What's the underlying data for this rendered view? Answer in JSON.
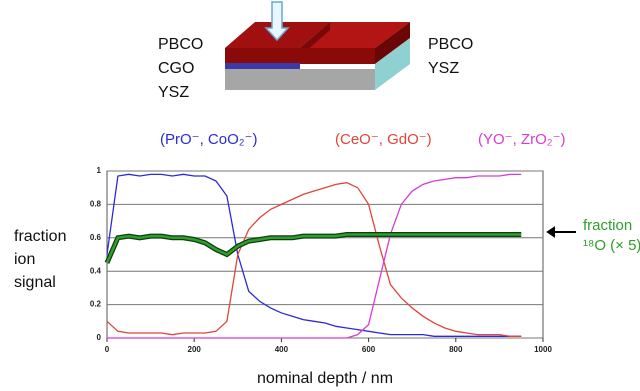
{
  "diagram": {
    "left_labels": [
      "PBCO",
      "CGO",
      "YSZ"
    ],
    "right_labels": [
      "PBCO",
      "YSZ"
    ]
  },
  "chart_data": {
    "type": "line",
    "ylabel": [
      "fraction",
      "ion",
      "signal"
    ],
    "xlabel": "nominal depth / nm",
    "annotations": [
      "fraction",
      "¹⁸O (× 5)"
    ],
    "x": [
      0,
      25,
      50,
      75,
      100,
      125,
      150,
      175,
      200,
      225,
      250,
      275,
      300,
      325,
      350,
      375,
      400,
      425,
      450,
      475,
      500,
      525,
      550,
      575,
      600,
      625,
      650,
      675,
      700,
      725,
      750,
      775,
      800,
      825,
      850,
      875,
      900,
      925,
      950
    ],
    "series": [
      {
        "name": "(PrO⁻, CoO₂⁻)",
        "color": "#2b2bd6",
        "values": [
          0.5,
          0.97,
          0.98,
          0.97,
          0.98,
          0.98,
          0.97,
          0.98,
          0.97,
          0.97,
          0.94,
          0.85,
          0.5,
          0.28,
          0.22,
          0.18,
          0.15,
          0.13,
          0.11,
          0.1,
          0.09,
          0.07,
          0.06,
          0.05,
          0.04,
          0.03,
          0.02,
          0.02,
          0.02,
          0.02,
          0.01,
          0.01,
          0.01,
          0.01,
          0.01,
          0.01,
          0.01,
          0.01,
          0.01
        ]
      },
      {
        "name": "(CeO⁻, GdO⁻)",
        "color": "#e0443a",
        "values": [
          0.1,
          0.04,
          0.03,
          0.03,
          0.03,
          0.03,
          0.02,
          0.03,
          0.03,
          0.03,
          0.04,
          0.1,
          0.5,
          0.65,
          0.72,
          0.77,
          0.8,
          0.83,
          0.86,
          0.88,
          0.9,
          0.92,
          0.93,
          0.9,
          0.8,
          0.55,
          0.32,
          0.24,
          0.18,
          0.13,
          0.09,
          0.06,
          0.04,
          0.03,
          0.02,
          0.02,
          0.02,
          0.01,
          0.01
        ]
      },
      {
        "name": "(YO⁻, ZrO₂⁻)",
        "color": "#d83ad8",
        "values": [
          0,
          0,
          0,
          0,
          0,
          0,
          0,
          0,
          0,
          0,
          0,
          0,
          0,
          0,
          0,
          0,
          0,
          0,
          0,
          0,
          0,
          0,
          0,
          0.02,
          0.08,
          0.35,
          0.62,
          0.8,
          0.88,
          0.92,
          0.94,
          0.95,
          0.96,
          0.96,
          0.97,
          0.97,
          0.97,
          0.98,
          0.98
        ]
      },
      {
        "name": "fraction ¹⁸O",
        "color": "#2e9e2e",
        "values": [
          0.45,
          0.6,
          0.61,
          0.6,
          0.61,
          0.61,
          0.6,
          0.6,
          0.59,
          0.57,
          0.53,
          0.5,
          0.55,
          0.58,
          0.59,
          0.6,
          0.6,
          0.6,
          0.61,
          0.61,
          0.61,
          0.61,
          0.62,
          0.62,
          0.62,
          0.62,
          0.62,
          0.62,
          0.62,
          0.62,
          0.62,
          0.62,
          0.62,
          0.62,
          0.62,
          0.62,
          0.62,
          0.62,
          0.62
        ]
      }
    ],
    "xlim": [
      0,
      1000
    ],
    "ylim": [
      0,
      1
    ],
    "xticks": [
      0,
      200,
      400,
      600,
      800,
      1000
    ],
    "yticks": [
      0,
      0.2,
      0.4,
      0.6,
      0.8,
      1
    ],
    "grid": true
  }
}
